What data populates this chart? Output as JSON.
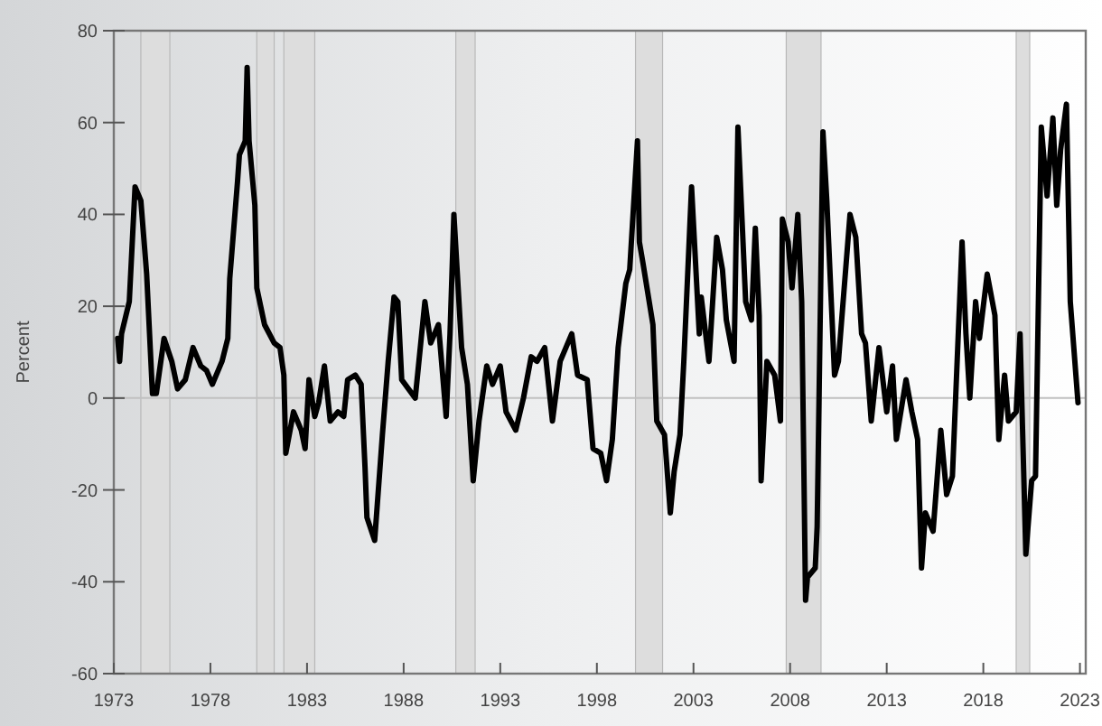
{
  "chart_data": {
    "type": "line",
    "ylabel": "Percent",
    "xlim": [
      1973,
      2023.3
    ],
    "xticks": [
      1973,
      1978,
      1983,
      1988,
      1993,
      1998,
      2003,
      2008,
      2013,
      2018,
      2023
    ],
    "ylim": [
      -60,
      80
    ],
    "yticks": [
      -60,
      -40,
      -20,
      0,
      20,
      40,
      60,
      80
    ],
    "grid": false,
    "marker": "none",
    "line_style": "solid",
    "ref_lines": [
      {
        "axis": "y",
        "value": 0,
        "color": "#c0c0c0"
      }
    ],
    "bands": [
      {
        "axis": "x",
        "from": 1974.4,
        "to": 1975.9,
        "color": "#dddddd"
      },
      {
        "axis": "x",
        "from": 1980.4,
        "to": 1981.3,
        "color": "#dddddd"
      },
      {
        "axis": "x",
        "from": 1981.8,
        "to": 1983.4,
        "color": "#dddddd"
      },
      {
        "axis": "x",
        "from": 1990.7,
        "to": 1991.7,
        "color": "#dddddd"
      },
      {
        "axis": "x",
        "from": 2000.0,
        "to": 2001.4,
        "color": "#dddddd"
      },
      {
        "axis": "x",
        "from": 2007.8,
        "to": 2009.6,
        "color": "#dddddd"
      },
      {
        "axis": "x",
        "from": 2019.7,
        "to": 2020.4,
        "color": "#dddddd"
      }
    ],
    "series": [
      {
        "color": "#000000",
        "x": [
          1973.2,
          1973.3,
          1973.4,
          1973.8,
          1974.1,
          1974.4,
          1974.7,
          1975.0,
          1975.2,
          1975.6,
          1976.0,
          1976.3,
          1976.7,
          1977.1,
          1977.5,
          1977.8,
          1978.1,
          1978.6,
          1978.9,
          1979.0,
          1979.4,
          1979.5,
          1979.8,
          1979.9,
          1980.0,
          1980.3,
          1980.4,
          1980.8,
          1981.3,
          1981.6,
          1981.8,
          1981.9,
          1982.3,
          1982.7,
          1982.9,
          1983.1,
          1983.4,
          1983.6,
          1983.9,
          1984.2,
          1984.6,
          1984.9,
          1985.1,
          1985.5,
          1985.8,
          1986.0,
          1986.1,
          1986.5,
          1986.9,
          1987.2,
          1987.5,
          1987.7,
          1987.9,
          1988.6,
          1989.1,
          1989.4,
          1989.8,
          1990.2,
          1990.4,
          1990.6,
          1991.0,
          1991.3,
          1991.6,
          1991.9,
          1992.3,
          1992.6,
          1993.0,
          1993.3,
          1993.8,
          1994.2,
          1994.6,
          1994.9,
          1995.3,
          1995.7,
          1996.1,
          1996.7,
          1997.0,
          1997.5,
          1997.8,
          1998.2,
          1998.5,
          1998.8,
          1999.1,
          1999.5,
          1999.7,
          2000.1,
          2000.2,
          2000.4,
          2000.9,
          2001.1,
          2001.5,
          2001.8,
          2002.0,
          2002.3,
          2002.5,
          2002.9,
          2003.3,
          2003.4,
          2003.8,
          2004.2,
          2004.5,
          2004.7,
          2005.1,
          2005.3,
          2005.7,
          2006.0,
          2006.2,
          2006.4,
          2006.5,
          2006.8,
          2007.2,
          2007.5,
          2007.6,
          2007.9,
          2008.1,
          2008.4,
          2008.6,
          2008.8,
          2008.9,
          2009.3,
          2009.4,
          2009.7,
          2009.9,
          2010.3,
          2010.5,
          2011.1,
          2011.4,
          2011.7,
          2011.9,
          2012.2,
          2012.6,
          2013.0,
          2013.3,
          2013.5,
          2014.0,
          2014.3,
          2014.6,
          2014.8,
          2015.0,
          2015.4,
          2015.8,
          2016.1,
          2016.4,
          2016.9,
          2017.1,
          2017.3,
          2017.6,
          2017.8,
          2018.2,
          2018.6,
          2018.8,
          2019.1,
          2019.3,
          2019.7,
          2019.9,
          2020.2,
          2020.5,
          2020.7,
          2021.0,
          2021.3,
          2021.6,
          2021.8,
          2022.0,
          2022.3,
          2022.5,
          2022.9
        ],
        "values": [
          13,
          8,
          14,
          21,
          46,
          43,
          27,
          1,
          1,
          13,
          8,
          2,
          4,
          11,
          7,
          6,
          3,
          8,
          13,
          26,
          47,
          53,
          56,
          72,
          56,
          42,
          24,
          16,
          12,
          11,
          5,
          -12,
          -3,
          -7,
          -11,
          4,
          -4,
          -1,
          7,
          -5,
          -3,
          -4,
          4,
          5,
          3,
          -15,
          -26,
          -31,
          -8,
          8,
          22,
          21,
          4,
          0,
          21,
          12,
          16,
          -4,
          14,
          40,
          11,
          3,
          -18,
          -5,
          7,
          3,
          7,
          -3,
          -7,
          0,
          9,
          8,
          11,
          -5,
          8,
          14,
          5,
          4,
          -11,
          -12,
          -18,
          -9,
          11,
          25,
          28,
          56,
          34,
          29,
          16,
          -5,
          -8,
          -25,
          -16,
          -8,
          8,
          46,
          14,
          22,
          8,
          35,
          28,
          17,
          8,
          59,
          21,
          17,
          37,
          18,
          -18,
          8,
          5,
          -5,
          39,
          34,
          24,
          40,
          21,
          -44,
          -39,
          -37,
          -28,
          58,
          43,
          5,
          8,
          40,
          35,
          14,
          12,
          -5,
          11,
          -3,
          7,
          -9,
          4,
          -3,
          -9,
          -37,
          -25,
          -29,
          -7,
          -21,
          -17,
          34,
          14,
          0,
          21,
          13,
          27,
          18,
          -9,
          5,
          -5,
          -3,
          14,
          -34,
          -18,
          -17,
          59,
          44,
          61,
          42,
          54,
          64,
          21,
          -1
        ]
      }
    ]
  }
}
